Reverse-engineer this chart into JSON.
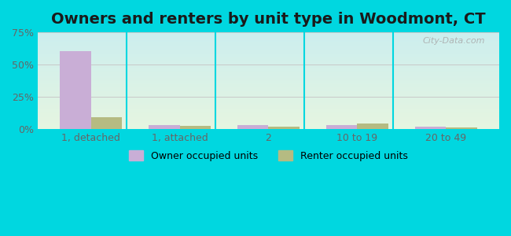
{
  "title": "Owners and renters by unit type in Woodmont, CT",
  "categories": [
    "1, detached",
    "1, attached",
    "2",
    "10 to 19",
    "20 to 49"
  ],
  "owner_values": [
    60.5,
    3.0,
    3.0,
    3.2,
    2.0
  ],
  "renter_values": [
    9.0,
    2.5,
    2.2,
    4.2,
    1.5
  ],
  "owner_color": "#c9aed6",
  "renter_color": "#b5bb82",
  "ylim": [
    0,
    75
  ],
  "yticks": [
    0,
    25,
    50,
    75
  ],
  "ytick_labels": [
    "0%",
    "25%",
    "50%",
    "75%"
  ],
  "background_outer": "#00d7e0",
  "background_plot_top": "#e6f5e0",
  "background_plot_bottom": "#cceeee",
  "grid_color": "#c8c8c8",
  "title_fontsize": 14,
  "legend_owner_label": "Owner occupied units",
  "legend_renter_label": "Renter occupied units",
  "bar_width": 0.35,
  "watermark": "City-Data.com"
}
